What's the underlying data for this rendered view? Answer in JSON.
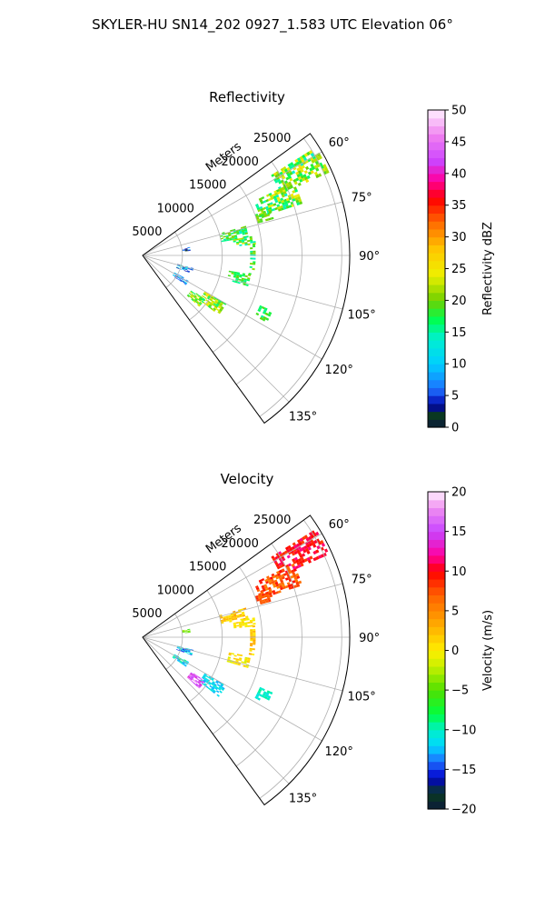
{
  "figure_title": "SKYLER-HU  SN14_202  0927_1.583 UTC Elevation 06°",
  "chart_data": [
    {
      "type": "polar-sector-heatmap",
      "title": "Reflectivity",
      "range_label": "Meters",
      "theta_range_deg": [
        54,
        144
      ],
      "r_range_m": [
        0,
        26000
      ],
      "r_ticks": [
        "5000",
        "10000",
        "15000",
        "20000",
        "25000"
      ],
      "r_tick_values": [
        5000,
        10000,
        15000,
        20000,
        25000
      ],
      "theta_ticks": [
        "60°",
        "75°",
        "90°",
        "105°",
        "120°",
        "135°"
      ],
      "theta_tick_values": [
        60,
        75,
        90,
        105,
        120,
        135
      ],
      "grid": true,
      "colorbar": {
        "label": "Reflectivity dBZ",
        "min": 0,
        "max": 50,
        "ticks": [
          "0",
          "5",
          "10",
          "15",
          "20",
          "25",
          "30",
          "35",
          "40",
          "45",
          "50"
        ],
        "tick_values": [
          0,
          5,
          10,
          15,
          20,
          25,
          30,
          35,
          40,
          45,
          50
        ],
        "stops": [
          {
            "v": 0,
            "c": "#0b1a3a"
          },
          {
            "v": 2,
            "c": "#0a3a20"
          },
          {
            "v": 3.5,
            "c": "#0000aa"
          },
          {
            "v": 6,
            "c": "#1e6fff"
          },
          {
            "v": 10,
            "c": "#00cfff"
          },
          {
            "v": 14,
            "c": "#00f0d0"
          },
          {
            "v": 17,
            "c": "#00ff50"
          },
          {
            "v": 20,
            "c": "#6fd000"
          },
          {
            "v": 24,
            "c": "#eef000"
          },
          {
            "v": 28,
            "c": "#ffc800"
          },
          {
            "v": 32,
            "c": "#ff7000"
          },
          {
            "v": 36,
            "c": "#ff0000"
          },
          {
            "v": 39,
            "c": "#ff00a0"
          },
          {
            "v": 42,
            "c": "#cc44ff"
          },
          {
            "v": 46,
            "c": "#f080f0"
          },
          {
            "v": 50,
            "c": "#fff0ff"
          }
        ]
      },
      "echo_regions": [
        {
          "theta": [
            58,
            66
          ],
          "r": [
            19000,
            25500
          ],
          "value": [
            14,
            26
          ]
        },
        {
          "theta": [
            64,
            72
          ],
          "r": [
            15500,
            21000
          ],
          "value": [
            14,
            25
          ]
        },
        {
          "theta": [
            70,
            74
          ],
          "r": [
            15000,
            17000
          ],
          "value": [
            18,
            22
          ]
        },
        {
          "theta": [
            74,
            80
          ],
          "r": [
            10000,
            13500
          ],
          "value": [
            13,
            21
          ]
        },
        {
          "theta": [
            80,
            84
          ],
          "r": [
            11500,
            14000
          ],
          "value": [
            14,
            24
          ]
        },
        {
          "theta": [
            84,
            100
          ],
          "r": [
            13500,
            14200
          ],
          "value": [
            14,
            22
          ]
        },
        {
          "theta": [
            100,
            106
          ],
          "r": [
            11000,
            13500
          ],
          "value": [
            15,
            21
          ]
        },
        {
          "theta": [
            120,
            128
          ],
          "r": [
            9000,
            12000
          ],
          "value": [
            16,
            26
          ]
        },
        {
          "theta": [
            125,
            132
          ],
          "r": [
            7500,
            9500
          ],
          "value": [
            16,
            24
          ]
        },
        {
          "theta": [
            113,
            118
          ],
          "r": [
            16000,
            17500
          ],
          "value": [
            15,
            20
          ]
        },
        {
          "theta": [
            80,
            84
          ],
          "r": [
            5000,
            6000
          ],
          "value": [
            2,
            10
          ]
        },
        {
          "theta": [
            104,
            110
          ],
          "r": [
            4500,
            6500
          ],
          "value": [
            3,
            14
          ]
        },
        {
          "theta": [
            118,
            124
          ],
          "r": [
            4500,
            6500
          ],
          "value": [
            3,
            12
          ]
        }
      ]
    },
    {
      "type": "polar-sector-heatmap",
      "title": "Velocity",
      "range_label": "Meters",
      "theta_range_deg": [
        54,
        144
      ],
      "r_range_m": [
        0,
        26000
      ],
      "r_ticks": [
        "5000",
        "10000",
        "15000",
        "20000",
        "25000"
      ],
      "r_tick_values": [
        5000,
        10000,
        15000,
        20000,
        25000
      ],
      "theta_ticks": [
        "60°",
        "75°",
        "90°",
        "105°",
        "120°",
        "135°"
      ],
      "theta_tick_values": [
        60,
        75,
        90,
        105,
        120,
        135
      ],
      "grid": true,
      "colorbar": {
        "label": "Velocity (m/s)",
        "min": -20,
        "max": 20,
        "ticks": [
          "−20",
          "−15",
          "−10",
          "−5",
          "0",
          "5",
          "10",
          "15",
          "20"
        ],
        "tick_values": [
          -20,
          -15,
          -10,
          -5,
          0,
          5,
          10,
          15,
          20
        ],
        "stops": [
          {
            "v": -20,
            "c": "#0b1a3a"
          },
          {
            "v": -18,
            "c": "#0a3a20"
          },
          {
            "v": -16,
            "c": "#0000cc"
          },
          {
            "v": -14,
            "c": "#1e6fff"
          },
          {
            "v": -12,
            "c": "#00d8ff"
          },
          {
            "v": -10,
            "c": "#00f0c8"
          },
          {
            "v": -8,
            "c": "#00ff40"
          },
          {
            "v": -5,
            "c": "#50e000"
          },
          {
            "v": -2,
            "c": "#c8f000"
          },
          {
            "v": 0,
            "c": "#ffee00"
          },
          {
            "v": 3,
            "c": "#ffb000"
          },
          {
            "v": 7,
            "c": "#ff6000"
          },
          {
            "v": 10,
            "c": "#ff0000"
          },
          {
            "v": 12,
            "c": "#ff00a0"
          },
          {
            "v": 15,
            "c": "#c844ff"
          },
          {
            "v": 18,
            "c": "#f090f0"
          },
          {
            "v": 20,
            "c": "#fff0ff"
          }
        ]
      },
      "echo_regions": [
        {
          "theta": [
            58,
            66
          ],
          "r": [
            19000,
            25500
          ],
          "value": [
            8,
            12
          ]
        },
        {
          "theta": [
            64,
            72
          ],
          "r": [
            15500,
            21000
          ],
          "value": [
            5,
            10
          ]
        },
        {
          "theta": [
            70,
            74
          ],
          "r": [
            15000,
            17000
          ],
          "value": [
            6,
            9
          ]
        },
        {
          "theta": [
            74,
            80
          ],
          "r": [
            10000,
            13500
          ],
          "value": [
            0,
            4
          ]
        },
        {
          "theta": [
            80,
            84
          ],
          "r": [
            11500,
            14000
          ],
          "value": [
            -1,
            2
          ]
        },
        {
          "theta": [
            84,
            100
          ],
          "r": [
            13500,
            14200
          ],
          "value": [
            0,
            4
          ]
        },
        {
          "theta": [
            100,
            106
          ],
          "r": [
            11000,
            13500
          ],
          "value": [
            -2,
            2
          ]
        },
        {
          "theta": [
            120,
            128
          ],
          "r": [
            9000,
            12000
          ],
          "value": [
            -13,
            -10
          ]
        },
        {
          "theta": [
            125,
            132
          ],
          "r": [
            7500,
            9500
          ],
          "value": [
            13,
            18
          ]
        },
        {
          "theta": [
            113,
            118
          ],
          "r": [
            16000,
            17500
          ],
          "value": [
            -11,
            -9
          ]
        },
        {
          "theta": [
            80,
            84
          ],
          "r": [
            5000,
            6000
          ],
          "value": [
            -6,
            -3
          ]
        },
        {
          "theta": [
            104,
            110
          ],
          "r": [
            4500,
            6500
          ],
          "value": [
            -16,
            -10
          ]
        },
        {
          "theta": [
            118,
            124
          ],
          "r": [
            4500,
            6500
          ],
          "value": [
            -14,
            -8
          ]
        }
      ]
    }
  ]
}
